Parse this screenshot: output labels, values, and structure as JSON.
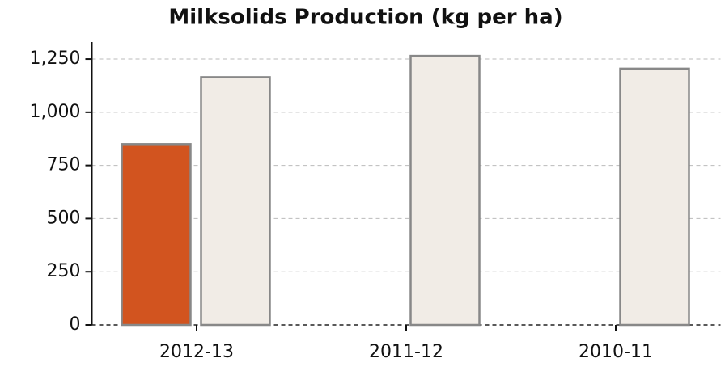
{
  "chart_data": {
    "type": "bar",
    "title": "Milksolids Production (kg per ha)",
    "categories": [
      "2012-13",
      "2011-12",
      "2010-11"
    ],
    "series": [
      {
        "color": "#d2541f",
        "values": [
          850,
          null,
          null
        ]
      },
      {
        "color": "#f1ece6",
        "values": [
          1165,
          1265,
          1205
        ]
      }
    ],
    "ylim": [
      0,
      1330
    ],
    "yticks": [
      0,
      250,
      500,
      750,
      {
        "value": 1000,
        "label": "1,000"
      },
      {
        "value": 1250,
        "label": "1,250"
      }
    ],
    "grid": true
  }
}
